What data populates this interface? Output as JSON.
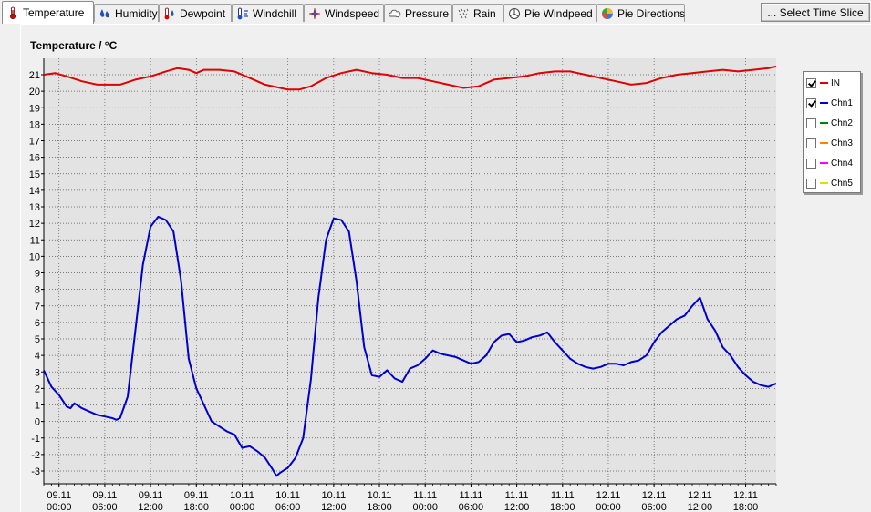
{
  "tabs": [
    {
      "label": "Temperature",
      "icon": "thermometer-icon",
      "active": true
    },
    {
      "label": "Humidity",
      "icon": "humidity-icon",
      "active": false
    },
    {
      "label": "Dewpoint",
      "icon": "dewpoint-icon",
      "active": false
    },
    {
      "label": "Windchill",
      "icon": "windchill-icon",
      "active": false
    },
    {
      "label": "Windspeed",
      "icon": "windspeed-icon",
      "active": false
    },
    {
      "label": "Pressure",
      "icon": "pressure-icon",
      "active": false
    },
    {
      "label": "Rain",
      "icon": "rain-icon",
      "active": false
    },
    {
      "label": "Pie Windpeed",
      "icon": "pie-windspeed-icon",
      "active": false
    },
    {
      "label": "Pie Directions",
      "icon": "pie-directions-icon",
      "active": false
    }
  ],
  "select_time_slice_label": "... Select Time Slice",
  "legend": [
    {
      "name": "IN",
      "checked": true,
      "color": "#e00000"
    },
    {
      "name": "Chn1",
      "checked": true,
      "color": "#0000cc"
    },
    {
      "name": "Chn2",
      "checked": false,
      "color": "#008000"
    },
    {
      "name": "Chn3",
      "checked": false,
      "color": "#ff8000"
    },
    {
      "name": "Chn4",
      "checked": false,
      "color": "#ff00ff"
    },
    {
      "name": "Chn5",
      "checked": false,
      "color": "#e0e000"
    }
  ],
  "chart_data": {
    "type": "line",
    "title": "Temperature / °C",
    "ylim": [
      -3.5,
      22
    ],
    "yticks": [
      21,
      20,
      19,
      18,
      17,
      16,
      15,
      14,
      13,
      12,
      11,
      10,
      9,
      8,
      7,
      6,
      5,
      4,
      3,
      2,
      1,
      0,
      -1,
      -2,
      -3
    ],
    "xlim": [
      0,
      96
    ],
    "xticks": [
      {
        "x": 2,
        "date": "09.11",
        "time": "00:00"
      },
      {
        "x": 8,
        "date": "09.11",
        "time": "06:00"
      },
      {
        "x": 14,
        "date": "09.11",
        "time": "12:00"
      },
      {
        "x": 20,
        "date": "09.11",
        "time": "18:00"
      },
      {
        "x": 26,
        "date": "10.11",
        "time": "00:00"
      },
      {
        "x": 32,
        "date": "10.11",
        "time": "06:00"
      },
      {
        "x": 38,
        "date": "10.11",
        "time": "12:00"
      },
      {
        "x": 44,
        "date": "10.11",
        "time": "18:00"
      },
      {
        "x": 50,
        "date": "11.11",
        "time": "00:00"
      },
      {
        "x": 56,
        "date": "11.11",
        "time": "06:00"
      },
      {
        "x": 62,
        "date": "11.11",
        "time": "12:00"
      },
      {
        "x": 68,
        "date": "11.11",
        "time": "18:00"
      },
      {
        "x": 74,
        "date": "12.11",
        "time": "00:00"
      },
      {
        "x": 80,
        "date": "12.11",
        "time": "06:00"
      },
      {
        "x": 86,
        "date": "12.11",
        "time": "12:00"
      },
      {
        "x": 92,
        "date": "12.11",
        "time": "18:00"
      }
    ],
    "grid": true,
    "legend_position": "right",
    "series": [
      {
        "name": "IN",
        "color": "#e00000",
        "points": [
          [
            0,
            21.0
          ],
          [
            1.5,
            21.1
          ],
          [
            3,
            20.9
          ],
          [
            5,
            20.6
          ],
          [
            7,
            20.4
          ],
          [
            9,
            20.4
          ],
          [
            10,
            20.4
          ],
          [
            12,
            20.7
          ],
          [
            14,
            20.9
          ],
          [
            16,
            21.2
          ],
          [
            17.5,
            21.4
          ],
          [
            19,
            21.3
          ],
          [
            20,
            21.1
          ],
          [
            21,
            21.3
          ],
          [
            23,
            21.3
          ],
          [
            25,
            21.2
          ],
          [
            27,
            20.8
          ],
          [
            29,
            20.4
          ],
          [
            31,
            20.2
          ],
          [
            32,
            20.1
          ],
          [
            33.5,
            20.1
          ],
          [
            35,
            20.3
          ],
          [
            37,
            20.8
          ],
          [
            39,
            21.1
          ],
          [
            41,
            21.3
          ],
          [
            43,
            21.1
          ],
          [
            45,
            21.0
          ],
          [
            47,
            20.8
          ],
          [
            49,
            20.8
          ],
          [
            51,
            20.6
          ],
          [
            53,
            20.4
          ],
          [
            55,
            20.2
          ],
          [
            57,
            20.3
          ],
          [
            59,
            20.7
          ],
          [
            61,
            20.8
          ],
          [
            63,
            20.9
          ],
          [
            65,
            21.1
          ],
          [
            67,
            21.2
          ],
          [
            69,
            21.2
          ],
          [
            71,
            21.0
          ],
          [
            73,
            20.8
          ],
          [
            75,
            20.6
          ],
          [
            77,
            20.4
          ],
          [
            79,
            20.5
          ],
          [
            81,
            20.8
          ],
          [
            83,
            21.0
          ],
          [
            85,
            21.1
          ],
          [
            87,
            21.2
          ],
          [
            89,
            21.3
          ],
          [
            91,
            21.2
          ],
          [
            93,
            21.3
          ],
          [
            95,
            21.4
          ],
          [
            96,
            21.5
          ]
        ]
      },
      {
        "name": "Chn1",
        "color": "#0000cc",
        "points": [
          [
            0,
            3.1
          ],
          [
            1,
            2.1
          ],
          [
            2,
            1.6
          ],
          [
            3,
            0.9
          ],
          [
            3.5,
            0.8
          ],
          [
            4,
            1.1
          ],
          [
            5,
            0.8
          ],
          [
            6,
            0.6
          ],
          [
            7,
            0.4
          ],
          [
            8,
            0.3
          ],
          [
            9,
            0.2
          ],
          [
            9.5,
            0.1
          ],
          [
            10,
            0.2
          ],
          [
            11,
            1.5
          ],
          [
            12,
            5.5
          ],
          [
            13,
            9.5
          ],
          [
            14,
            11.8
          ],
          [
            15,
            12.4
          ],
          [
            16,
            12.2
          ],
          [
            17,
            11.5
          ],
          [
            18,
            8.5
          ],
          [
            19,
            3.8
          ],
          [
            20,
            2.0
          ],
          [
            21,
            1.0
          ],
          [
            22,
            0.0
          ],
          [
            23,
            -0.3
          ],
          [
            24,
            -0.6
          ],
          [
            25,
            -0.8
          ],
          [
            26,
            -1.6
          ],
          [
            27,
            -1.5
          ],
          [
            28,
            -1.8
          ],
          [
            29,
            -2.2
          ],
          [
            30,
            -2.9
          ],
          [
            30.5,
            -3.3
          ],
          [
            31,
            -3.1
          ],
          [
            32,
            -2.8
          ],
          [
            33,
            -2.2
          ],
          [
            34,
            -1.0
          ],
          [
            35,
            2.5
          ],
          [
            36,
            7.5
          ],
          [
            37,
            11.0
          ],
          [
            38,
            12.3
          ],
          [
            39,
            12.2
          ],
          [
            40,
            11.5
          ],
          [
            41,
            8.5
          ],
          [
            42,
            4.5
          ],
          [
            43,
            2.8
          ],
          [
            44,
            2.7
          ],
          [
            45,
            3.1
          ],
          [
            46,
            2.6
          ],
          [
            47,
            2.4
          ],
          [
            48,
            3.2
          ],
          [
            49,
            3.4
          ],
          [
            50,
            3.8
          ],
          [
            51,
            4.3
          ],
          [
            52,
            4.1
          ],
          [
            53,
            4.0
          ],
          [
            54,
            3.9
          ],
          [
            55,
            3.7
          ],
          [
            56,
            3.5
          ],
          [
            57,
            3.6
          ],
          [
            58,
            4.0
          ],
          [
            59,
            4.8
          ],
          [
            60,
            5.2
          ],
          [
            61,
            5.3
          ],
          [
            62,
            4.8
          ],
          [
            63,
            4.9
          ],
          [
            64,
            5.1
          ],
          [
            65,
            5.2
          ],
          [
            66,
            5.4
          ],
          [
            67,
            4.8
          ],
          [
            68,
            4.3
          ],
          [
            69,
            3.8
          ],
          [
            70,
            3.5
          ],
          [
            71,
            3.3
          ],
          [
            72,
            3.2
          ],
          [
            73,
            3.3
          ],
          [
            74,
            3.5
          ],
          [
            75,
            3.5
          ],
          [
            76,
            3.4
          ],
          [
            77,
            3.6
          ],
          [
            78,
            3.7
          ],
          [
            79,
            4.0
          ],
          [
            80,
            4.8
          ],
          [
            81,
            5.4
          ],
          [
            82,
            5.8
          ],
          [
            83,
            6.2
          ],
          [
            84,
            6.4
          ],
          [
            85,
            7.0
          ],
          [
            86,
            7.5
          ],
          [
            87,
            6.2
          ],
          [
            88,
            5.5
          ],
          [
            89,
            4.5
          ],
          [
            90,
            4.0
          ],
          [
            91,
            3.3
          ],
          [
            92,
            2.8
          ],
          [
            93,
            2.4
          ],
          [
            94,
            2.2
          ],
          [
            95,
            2.1
          ],
          [
            96,
            2.3
          ]
        ]
      }
    ]
  }
}
